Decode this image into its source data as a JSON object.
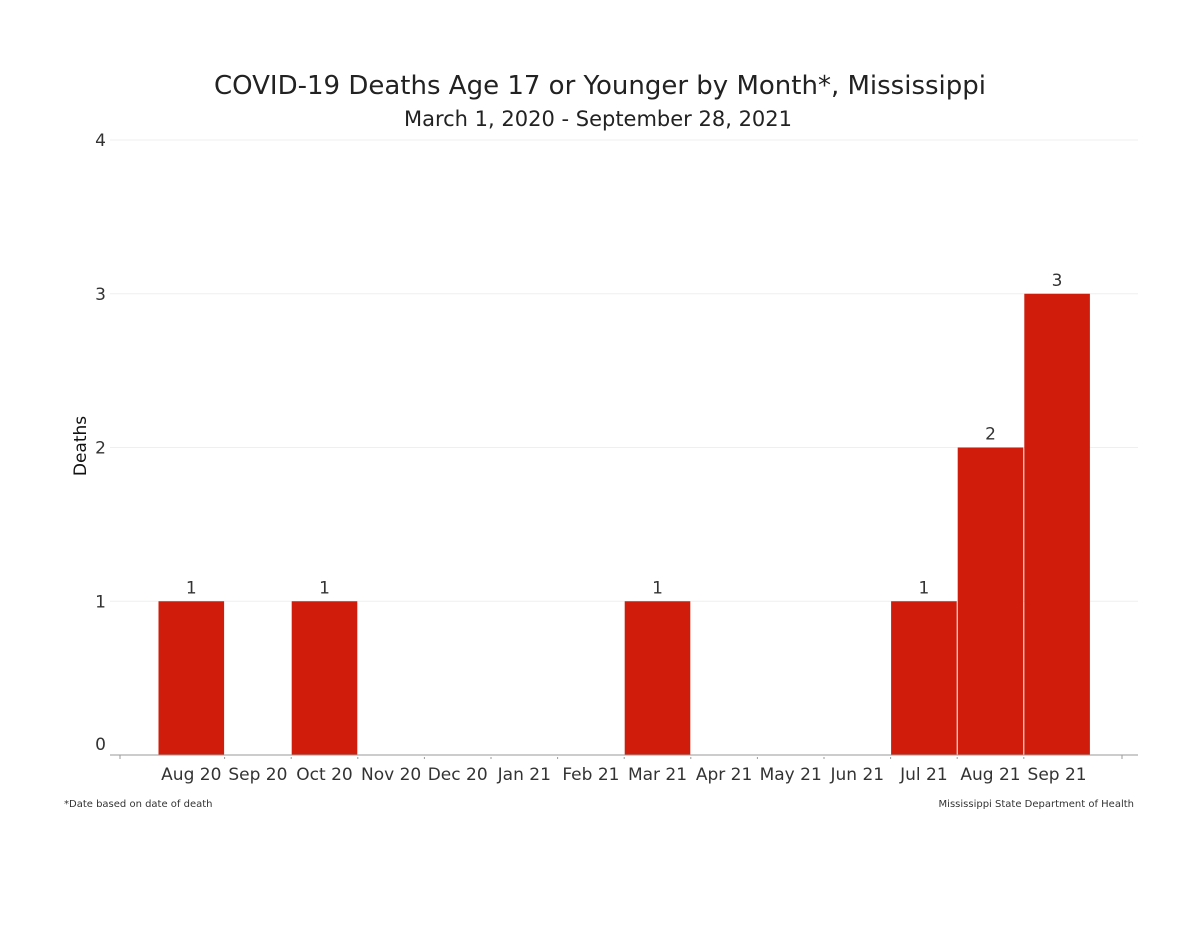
{
  "chart_data": {
    "type": "bar",
    "title": "COVID-19 Deaths Age 17 or Younger by Month*, Mississippi",
    "subtitle": "March 1, 2020 - September 28, 2021",
    "ylabel": "Deaths",
    "xlabel": "",
    "ylim": [
      0,
      4
    ],
    "yticks": [
      0,
      1,
      2,
      3,
      4
    ],
    "grid": true,
    "bar_color": "#d01c0b",
    "categories": [
      "Aug 20",
      "Sep 20",
      "Oct 20",
      "Nov 20",
      "Dec 20",
      "Jan 21",
      "Feb 21",
      "Mar 21",
      "Apr 21",
      "May 21",
      "Jun 21",
      "Jul 21",
      "Aug 21",
      "Sep 21"
    ],
    "values": [
      1,
      null,
      1,
      null,
      null,
      null,
      null,
      1,
      null,
      null,
      null,
      1,
      2,
      3
    ],
    "data_labels": [
      "1",
      "",
      "1",
      "",
      "",
      "",
      "",
      "1",
      "",
      "",
      "",
      "1",
      "2",
      "3"
    ]
  },
  "footnote_left": "*Date based on date of death",
  "footnote_right": "Mississippi State Department of Health"
}
